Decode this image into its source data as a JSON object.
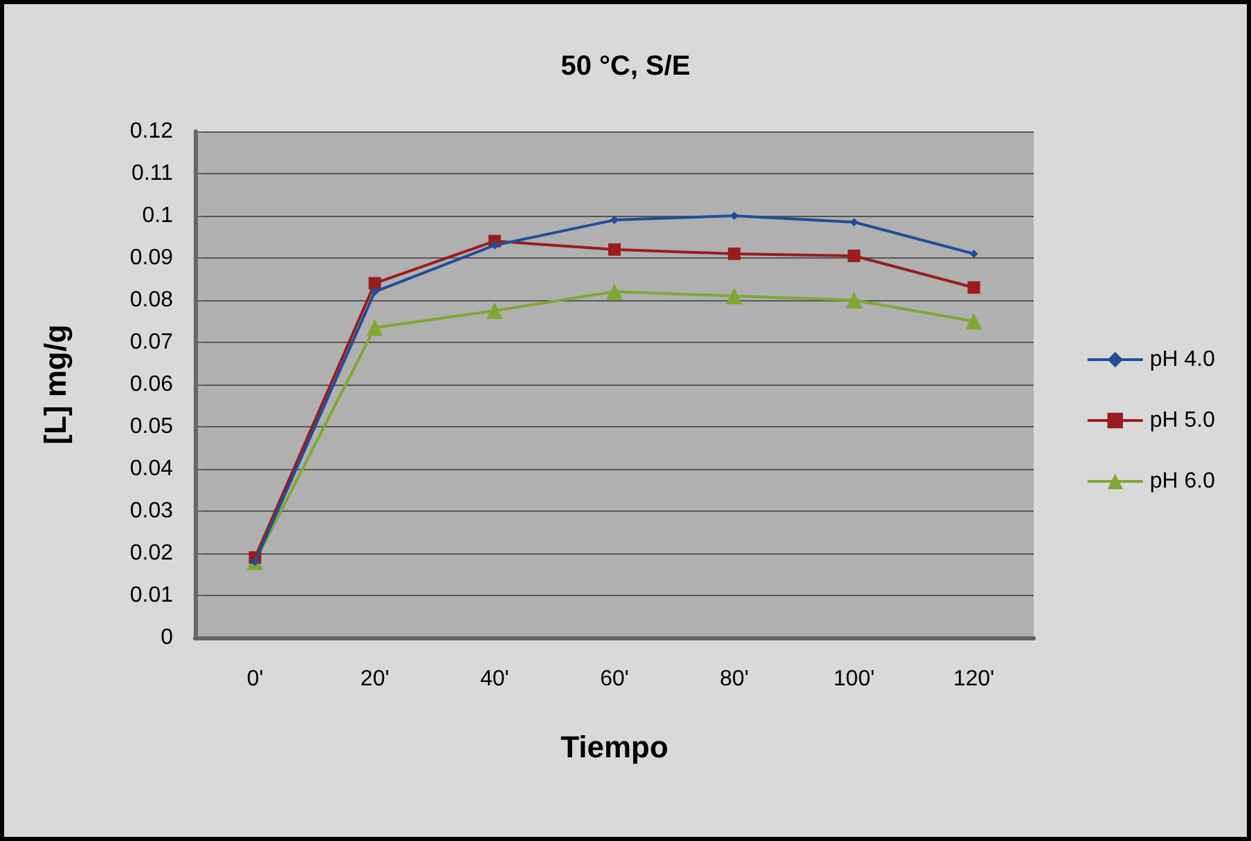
{
  "chart_data": {
    "type": "line",
    "title": "50 °C, S/E",
    "xlabel": "Tiempo",
    "ylabel": "[L] mg/g",
    "categories": [
      "0'",
      "20'",
      "40'",
      "60'",
      "80'",
      "100'",
      "120'"
    ],
    "series": [
      {
        "name": "pH 4.0",
        "color": "#1f4e9a",
        "marker": "diamond",
        "values": [
          0.018,
          0.082,
          0.093,
          0.099,
          0.1,
          0.0985,
          0.091
        ]
      },
      {
        "name": "pH 5.0",
        "color": "#9b1c1c",
        "marker": "square",
        "values": [
          0.019,
          0.084,
          0.094,
          0.092,
          0.091,
          0.0905,
          0.083
        ]
      },
      {
        "name": "pH 6.0",
        "color": "#7fa832",
        "marker": "triangle",
        "values": [
          0.018,
          0.0735,
          0.0775,
          0.082,
          0.081,
          0.08,
          0.075
        ]
      }
    ],
    "ylim": [
      0,
      0.12
    ],
    "yticks": [
      0,
      0.01,
      0.02,
      0.03,
      0.04,
      0.05,
      0.06,
      0.07,
      0.08,
      0.09,
      0.1,
      0.11,
      0.12
    ],
    "grid": "y",
    "legend": "right",
    "line_style": "solid"
  }
}
